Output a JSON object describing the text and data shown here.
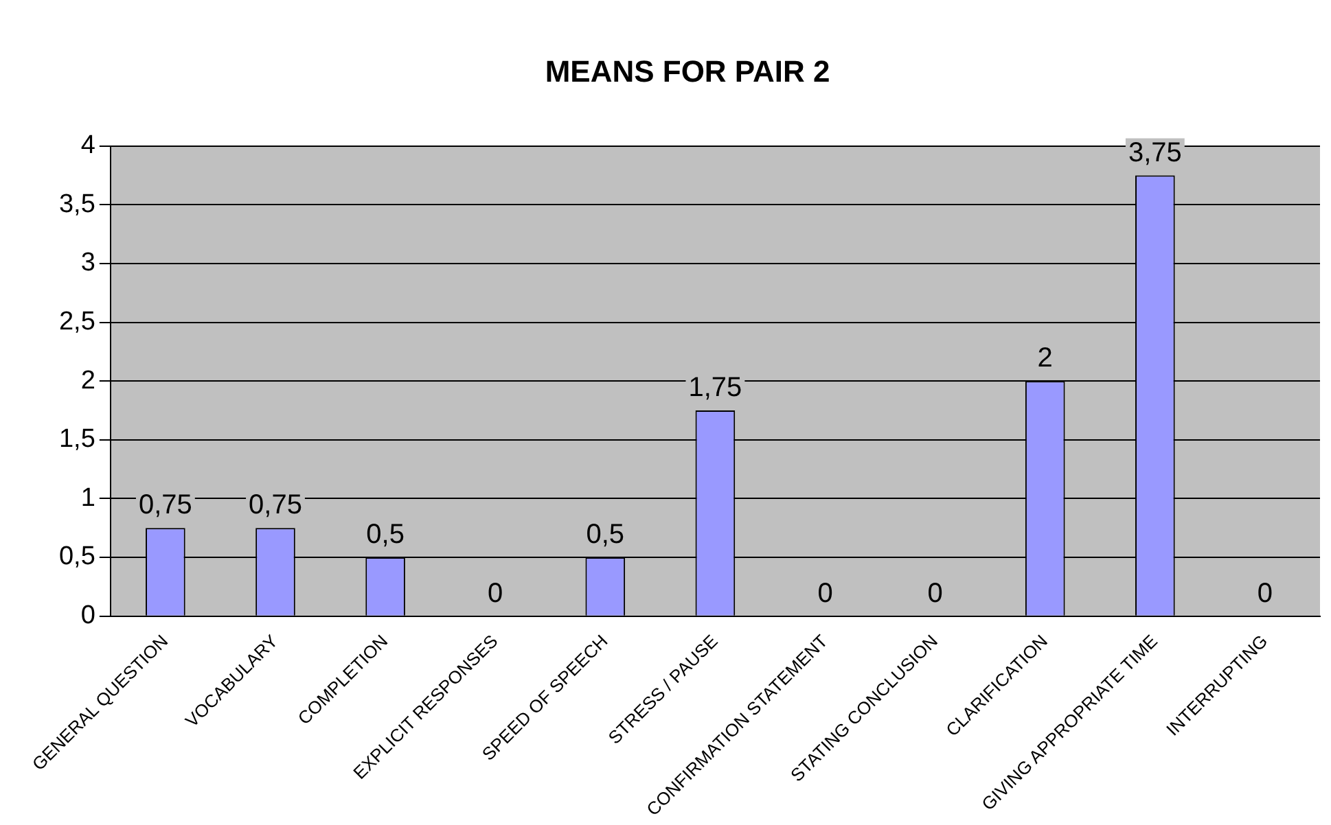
{
  "chart_data": {
    "type": "bar",
    "title": "MEANS FOR PAIR 2",
    "categories": [
      "GENERAL QUESTION",
      "VOCABULARY",
      "COMPLETION",
      "EXPLICIT RESPONSES",
      "SPEED OF SPEECH",
      "STRESS / PAUSE",
      "CONFIRMATION STATEMENT",
      "STATING CONCLUSION",
      "CLARIFICATION",
      "GIVING APPROPRIATE TIME",
      "INTERRUPTING"
    ],
    "values": [
      0.75,
      0.75,
      0.5,
      0,
      0.5,
      1.75,
      0,
      0,
      2,
      3.75,
      0
    ],
    "value_labels": [
      "0,75",
      "0,75",
      "0,5",
      "0",
      "0,5",
      "1,75",
      "0",
      "0",
      "2",
      "3,75",
      "0"
    ],
    "color": "#9999ff",
    "ylim": [
      0,
      4
    ],
    "yticks": [
      0,
      {
        "value": 0.5,
        "label": "0,5"
      },
      1,
      {
        "value": 1.5,
        "label": "1,5"
      },
      2,
      {
        "value": 2.5,
        "label": "2,5"
      },
      3,
      {
        "value": 3.5,
        "label": "3,5"
      },
      4
    ],
    "grid": "y",
    "legend": false
  }
}
